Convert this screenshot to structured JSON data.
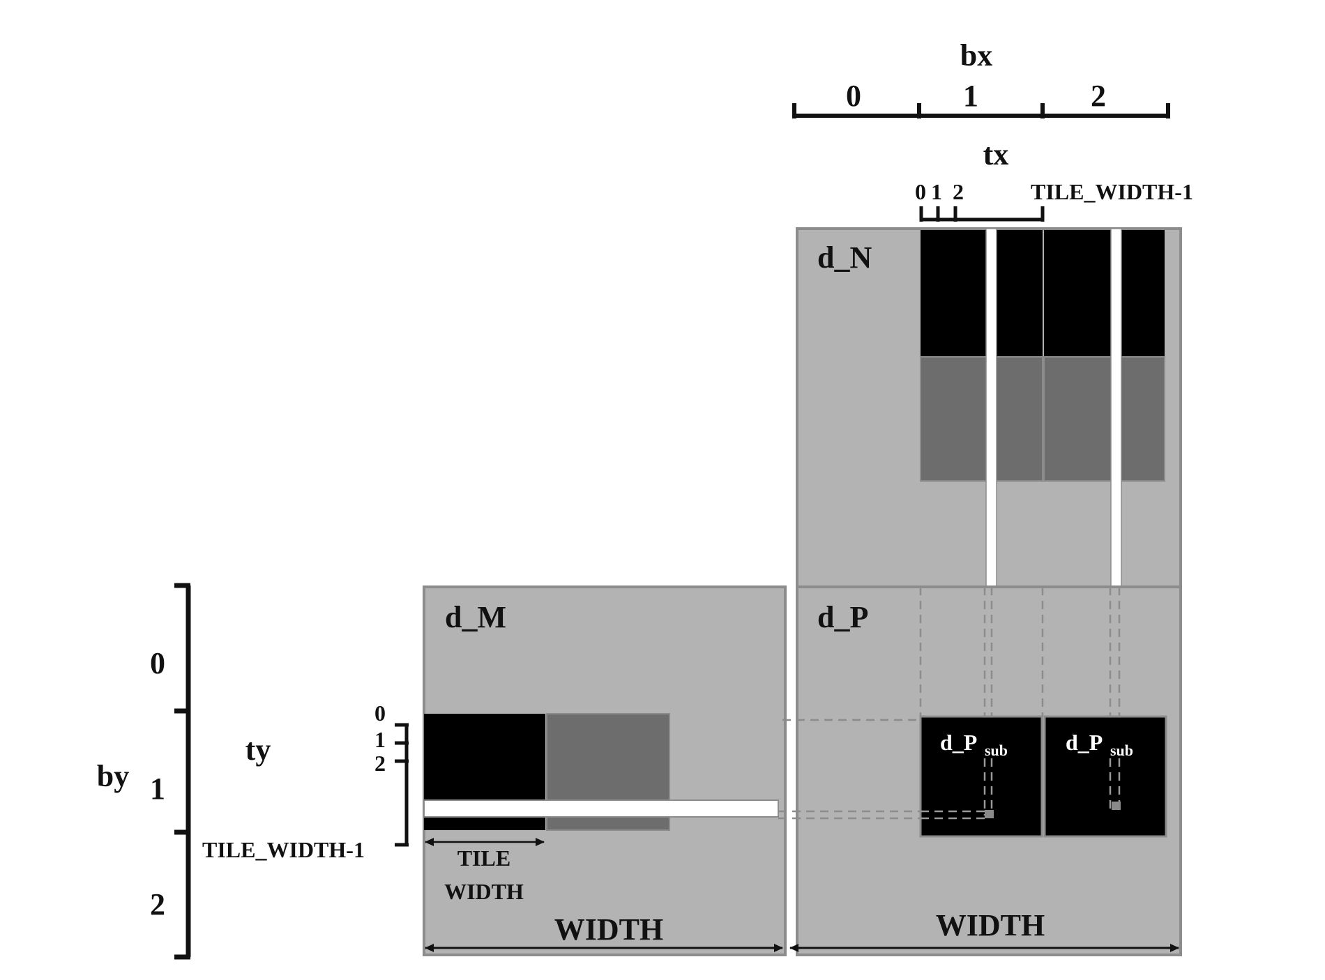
{
  "axes": {
    "bx": {
      "label": "bx",
      "blocks": [
        "0",
        "1",
        "2"
      ]
    },
    "tx": {
      "label": "tx",
      "ticks": [
        "0",
        "1",
        "2"
      ],
      "last": "TILE_WIDTH-1"
    },
    "by": {
      "label": "by",
      "blocks": [
        "0",
        "1",
        "2"
      ]
    },
    "ty": {
      "label": "ty",
      "ticks": [
        "0",
        "1",
        "2"
      ],
      "last": "TILE_WIDTH-1"
    }
  },
  "matrices": {
    "n": {
      "label": "d_N"
    },
    "m": {
      "label": "d_M"
    },
    "p": {
      "label": "d_P"
    }
  },
  "sub_tiles": {
    "main": "d_P",
    "subscript": "sub"
  },
  "dimensions": {
    "m_width": "WIDTH",
    "p_width": "WIDTH",
    "tile_width_line1": "TILE",
    "tile_width_line2": "WIDTH"
  },
  "colors": {
    "matrix_fill": "#b3b3b3",
    "matrix_border": "#8c8c8c",
    "active_tile": "#000000",
    "next_tile": "#6d6d6d",
    "highlight": "#ffffff"
  }
}
